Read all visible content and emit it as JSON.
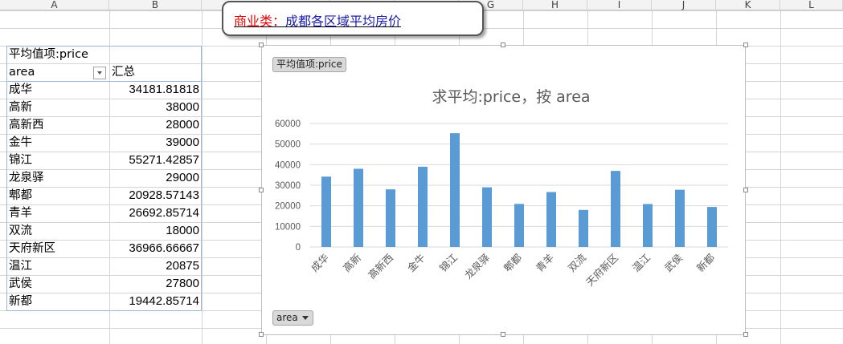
{
  "sheet": {
    "column_headers": [
      "A",
      "B",
      "G",
      "H",
      "I",
      "J",
      "K",
      "L"
    ],
    "pivot": {
      "value_label": "平均值项:price",
      "row_header": "area",
      "total_header": "汇总",
      "rows": [
        {
          "area": "成华",
          "value": "34181.81818"
        },
        {
          "area": "高新",
          "value": "38000"
        },
        {
          "area": "高新西",
          "value": "28000"
        },
        {
          "area": "金牛",
          "value": "39000"
        },
        {
          "area": "锦江",
          "value": "55271.42857"
        },
        {
          "area": "龙泉驿",
          "value": "29000"
        },
        {
          "area": "郫都",
          "value": "20928.57143"
        },
        {
          "area": "青羊",
          "value": "26692.85714"
        },
        {
          "area": "双流",
          "value": "18000"
        },
        {
          "area": "天府新区",
          "value": "36966.66667"
        },
        {
          "area": "温江",
          "value": "20875"
        },
        {
          "area": "武侯",
          "value": "27800"
        },
        {
          "area": "新都",
          "value": "19442.85714"
        }
      ]
    }
  },
  "callout": {
    "prefix": "商业类：",
    "title": "成都各区域平均房价"
  },
  "chart": {
    "value_field_button": "平均值项:price",
    "axis_field_button": "area"
  },
  "chart_data": {
    "type": "bar",
    "title": "求平均:price，按 area",
    "categories": [
      "成华",
      "高新",
      "高新西",
      "金牛",
      "锦江",
      "龙泉驿",
      "郫都",
      "青羊",
      "双流",
      "天府新区",
      "温江",
      "武侯",
      "新都"
    ],
    "values": [
      34181.81818,
      38000,
      28000,
      39000,
      55271.42857,
      29000,
      20928.57143,
      26692.85714,
      18000,
      36966.66667,
      20875,
      27800,
      19442.85714
    ],
    "yticks": [
      0,
      10000,
      20000,
      30000,
      40000,
      50000,
      60000
    ],
    "ylim": [
      0,
      60000
    ],
    "grid": true,
    "bar_color": "#5b9bd5",
    "xlabel": "",
    "ylabel": ""
  }
}
